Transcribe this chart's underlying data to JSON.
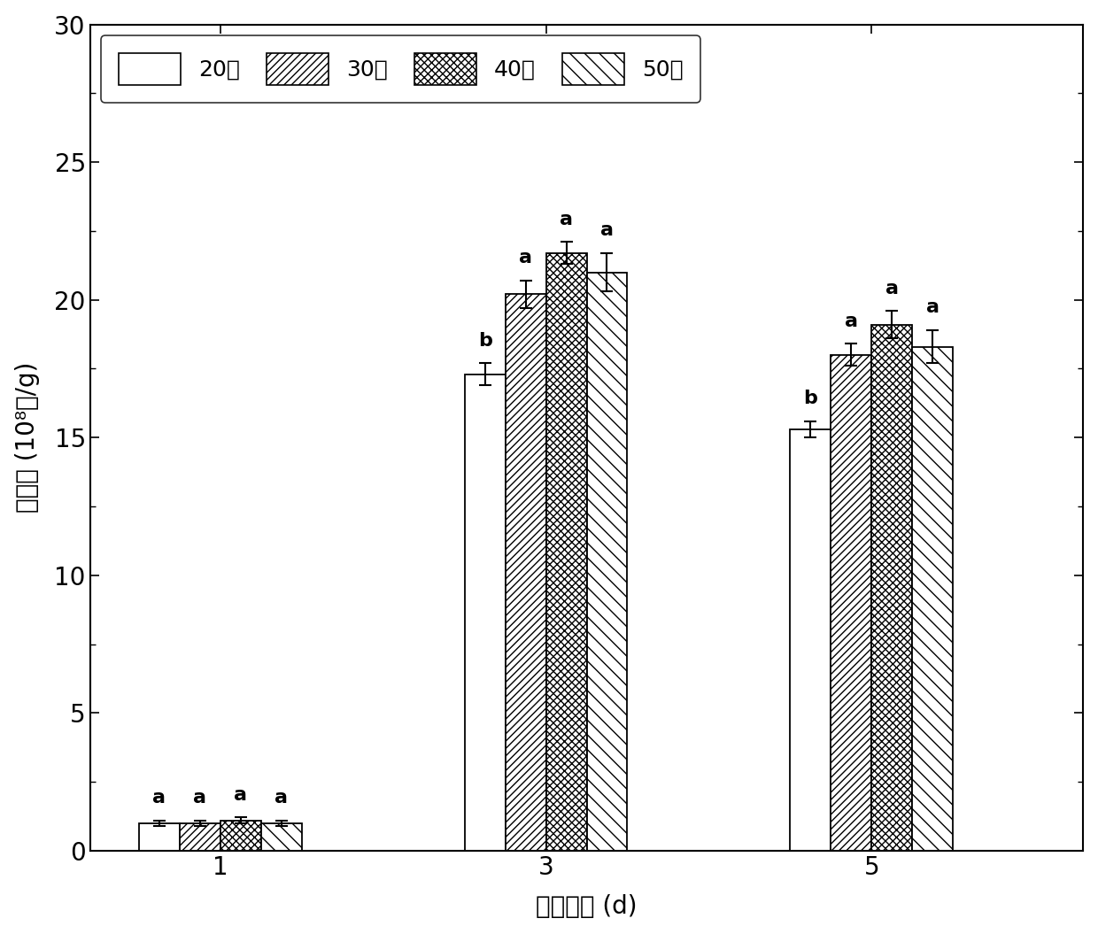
{
  "groups": [
    1,
    3,
    5
  ],
  "series_labels": [
    "20目",
    "30目",
    "40目",
    "50目"
  ],
  "values": [
    [
      1.0,
      1.0,
      1.1,
      1.0
    ],
    [
      17.3,
      20.2,
      21.7,
      21.0
    ],
    [
      15.3,
      18.0,
      19.1,
      18.3
    ]
  ],
  "errors": [
    [
      0.1,
      0.1,
      0.1,
      0.1
    ],
    [
      0.4,
      0.5,
      0.4,
      0.7
    ],
    [
      0.3,
      0.4,
      0.5,
      0.6
    ]
  ],
  "sig_labels": [
    [
      "a",
      "a",
      "a",
      "a"
    ],
    [
      "b",
      "a",
      "a",
      "a"
    ],
    [
      "b",
      "a",
      "a",
      "a"
    ]
  ],
  "xlabel": "发酵天数 (d)",
  "ylabel_cn": "孢子数",
  "ylabel_sup": "10⁸个/g",
  "ylim": [
    0,
    30
  ],
  "yticks": [
    0,
    5,
    10,
    15,
    20,
    25,
    30
  ],
  "bar_width": 0.25,
  "group_positions": [
    1,
    3,
    5
  ],
  "label_fontsize": 20,
  "tick_fontsize": 20,
  "legend_fontsize": 18,
  "sig_fontsize": 16
}
